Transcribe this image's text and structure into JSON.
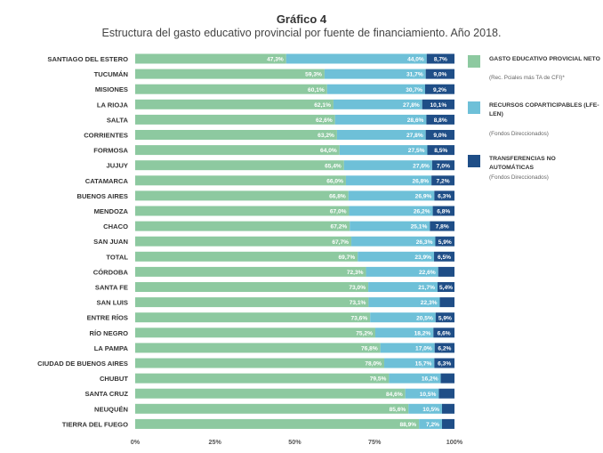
{
  "chart_data": {
    "type": "bar",
    "orientation": "horizontal",
    "stacked": true,
    "title": "Gráfico 4",
    "subtitle": "Estructura del gasto educativo provincial por fuente de financiamiento. Año 2018.",
    "categories": [
      "SANTIAGO DEL ESTERO",
      "TUCUMÁN",
      "MISIONES",
      "LA RIOJA",
      "SALTA",
      "CORRIENTES",
      "FORMOSA",
      "JUJUY",
      "CATAMARCA",
      "BUENOS AIRES",
      "MENDOZA",
      "CHACO",
      "SAN JUAN",
      "TOTAL",
      "CÓRDOBA",
      "SANTA FE",
      "SAN LUIS",
      "ENTRE RÍOS",
      "RÍO NEGRO",
      "LA PAMPA",
      "CIUDAD DE BUENOS AIRES",
      "CHUBUT",
      "SANTA CRUZ",
      "NEUQUÉN",
      "TIERRA DEL FUEGO"
    ],
    "bold_categories": [
      "TOTAL"
    ],
    "series": [
      {
        "name": "GASTO EDUCATIVO PROVICIAL NETO",
        "note": "(Rec. Pciales más TA de CFI)*",
        "color": "#8dc9a0",
        "values": [
          47.3,
          59.3,
          60.1,
          62.1,
          62.6,
          63.2,
          64.0,
          65.4,
          66.0,
          66.8,
          67.0,
          67.2,
          67.7,
          69.7,
          72.3,
          73.0,
          73.1,
          73.6,
          75.2,
          76.8,
          78.0,
          79.5,
          84.6,
          85.6,
          88.9
        ],
        "labels": [
          "47,3%",
          "59,3%",
          "60,1%",
          "62,1%",
          "62,6%",
          "63,2%",
          "64,0%",
          "65,4%",
          "66,0%",
          "66,8%",
          "67,0%",
          "67,2%",
          "67,7%",
          "69,7%",
          "72,3%",
          "73,0%",
          "73,1%",
          "73,6%",
          "75,2%",
          "76,8%",
          "78,0%",
          "79,5%",
          "84,6%",
          "85,6%",
          "88,9%"
        ]
      },
      {
        "name": "RECURSOS COPARTICIPABLES (LFE-LEN)",
        "note": "(Fondos Direccionados)",
        "color": "#6ec0d8",
        "values": [
          44.0,
          31.7,
          30.7,
          27.8,
          28.6,
          27.8,
          27.5,
          27.6,
          26.8,
          26.9,
          26.2,
          25.1,
          26.3,
          23.9,
          22.6,
          21.7,
          22.3,
          20.5,
          18.2,
          17.0,
          15.7,
          16.2,
          10.5,
          10.5,
          7.2
        ],
        "labels": [
          "44,0%",
          "31,7%",
          "30,7%",
          "27,8%",
          "28,6%",
          "27,8%",
          "27,5%",
          "27,6%",
          "26,8%",
          "26,9%",
          "26,2%",
          "25,1%",
          "26,3%",
          "23,9%",
          "22,6%",
          "21,7%",
          "22,3%",
          "20,5%",
          "18,2%",
          "17,0%",
          "15,7%",
          "16,2%",
          "10,5%",
          "10,5%",
          "7,2%"
        ]
      },
      {
        "name": "TRANSFERENCIAS NO AUTOMÁTICAS",
        "note": "(Fondos Direccionados)",
        "color": "#1f4e87",
        "values": [
          8.7,
          9.0,
          9.2,
          10.1,
          8.8,
          9.0,
          8.5,
          7.0,
          7.2,
          6.3,
          6.8,
          7.8,
          5.9,
          6.5,
          5.1,
          5.4,
          4.6,
          5.9,
          6.6,
          6.2,
          6.3,
          4.3,
          4.9,
          3.9,
          3.9
        ],
        "labels": [
          "8,7%",
          "9,0%",
          "9,2%",
          "10,1%",
          "8,8%",
          "9,0%",
          "8,5%",
          "7,0%",
          "7,2%",
          "6,3%",
          "6,8%",
          "7,8%",
          "5,9%",
          "6,5%",
          "",
          "5,4%",
          "",
          "5,9%",
          "6,6%",
          "6,2%",
          "6,3%",
          "",
          "",
          "",
          ""
        ]
      }
    ],
    "xlim": [
      0,
      100
    ],
    "xticks": [
      "0%",
      "25%",
      "50%",
      "75%",
      "100%"
    ],
    "legend_position": "right",
    "grid": false
  }
}
